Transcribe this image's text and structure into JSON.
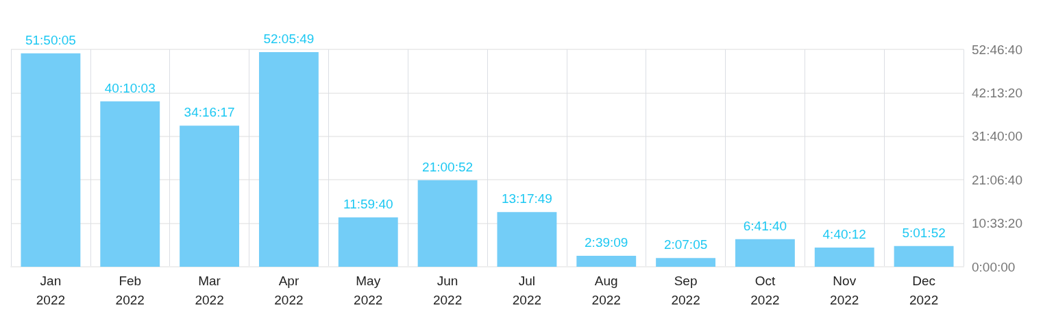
{
  "chart_data": {
    "type": "bar",
    "categories": [
      "Jan\n2022",
      "Feb\n2022",
      "Mar\n2022",
      "Apr\n2022",
      "May\n2022",
      "Jun\n2022",
      "Jul\n2022",
      "Aug\n2022",
      "Sep\n2022",
      "Oct\n2022",
      "Nov\n2022",
      "Dec\n2022"
    ],
    "values": [
      186605,
      144603,
      123377,
      187549,
      43180,
      75652,
      47869,
      9549,
      7625,
      24100,
      16812,
      18112
    ],
    "value_labels": [
      "51:50:05",
      "40:10:03",
      "34:16:17",
      "52:05:49",
      "11:59:40",
      "21:00:52",
      "13:17:49",
      "2:39:09",
      "2:07:05",
      "6:41:40",
      "4:40:12",
      "5:01:52"
    ],
    "color": "#73cdf7",
    "ylim": [
      0,
      190000
    ],
    "yticks": [
      {
        "value": 0,
        "label": "0:00:00"
      },
      {
        "value": 38000,
        "label": "10:33:20"
      },
      {
        "value": 76000,
        "label": "21:06:40"
      },
      {
        "value": 114000,
        "label": "31:40:00"
      },
      {
        "value": 152000,
        "label": "42:13:20"
      },
      {
        "value": 190000,
        "label": "52:46:40"
      }
    ],
    "grid": true
  }
}
